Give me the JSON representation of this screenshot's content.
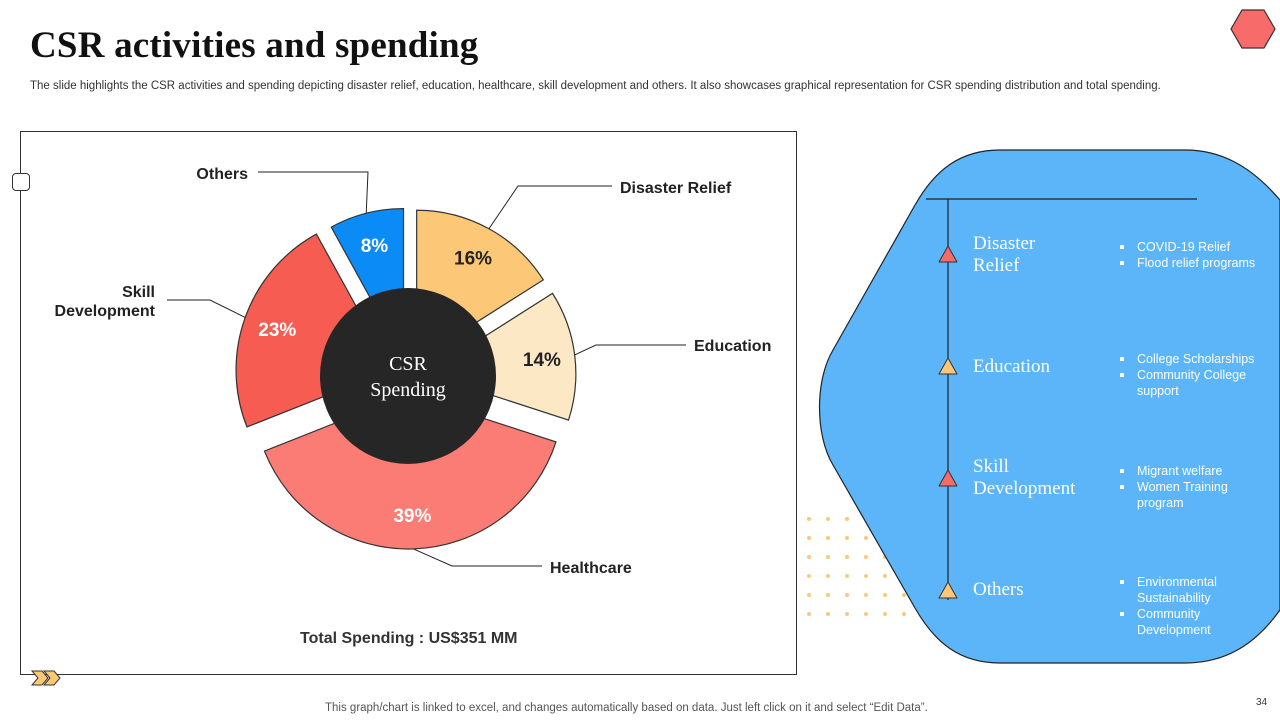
{
  "header": {
    "title": "CSR activities and spending",
    "subtitle": "The slide highlights the CSR activities and spending depicting disaster relief, education, healthcare, skill development and others. It also showcases graphical representation for CSR spending distribution and total spending."
  },
  "chart_data": {
    "type": "pie",
    "title": "",
    "center_label": [
      "CSR",
      "Spending"
    ],
    "categories": [
      "Disaster Relief",
      "Education",
      "Healthcare",
      "Skill Development",
      "Others"
    ],
    "values": [
      16,
      14,
      39,
      23,
      8
    ],
    "value_labels": [
      "16%",
      "14%",
      "39%",
      "23%",
      "8%"
    ],
    "legend_labels": [
      "Disaster Relief",
      "Education",
      "Healthcare",
      "Skill Development",
      "Others"
    ],
    "colors": [
      "#FCC877",
      "#FDE8C6",
      "#FA7C74",
      "#F75C52",
      "#0A8BF5"
    ]
  },
  "total": "Total Spending : US$351 MM",
  "activities": [
    {
      "name": "Disaster Relief",
      "name_lines": [
        "Disaster",
        "Relief"
      ],
      "bullets": [
        "COVID-19 Relief",
        "Flood relief programs"
      ],
      "color": "#F76B6B"
    },
    {
      "name": "Education",
      "name_lines": [
        "Education"
      ],
      "bullets": [
        "College Scholarships",
        "Community College support"
      ],
      "color": "#FCC877"
    },
    {
      "name": "Skill Development",
      "name_lines": [
        "Skill",
        "Development"
      ],
      "bullets": [
        "Migrant welfare",
        "Women Training program"
      ],
      "color": "#F76B6B"
    },
    {
      "name": "Others",
      "name_lines": [
        "Others"
      ],
      "bullets": [
        "Environmental Sustainability",
        "Community Development"
      ],
      "color": "#FCC877"
    }
  ],
  "footer": "This graph/chart is linked to excel,  and changes automatically based on data. Just left click on it and select “Edit Data”.",
  "page_number": "34",
  "colors": {
    "panel_blue": "#5BB5F8",
    "center_dark": "#262626",
    "logo_fill": "#F76B6B"
  }
}
